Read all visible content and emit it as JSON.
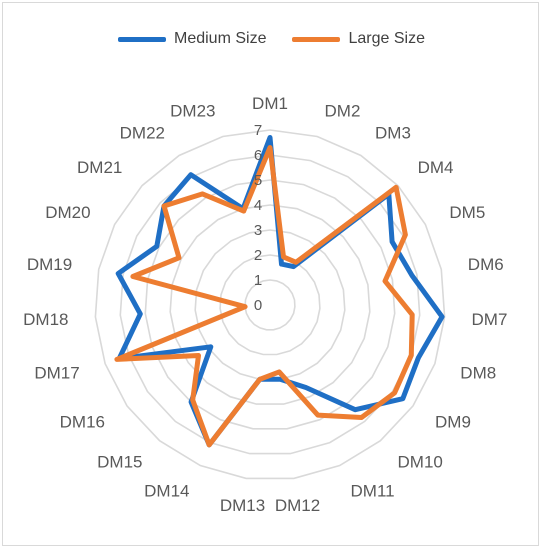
{
  "chart_data": {
    "type": "radar",
    "title": "",
    "categories": [
      "DM1",
      "DM2",
      "DM3",
      "DM4",
      "DM5",
      "DM6",
      "DM7",
      "DM8",
      "DM9",
      "DM10",
      "DM11",
      "DM12",
      "DM13",
      "DM14",
      "DM15",
      "DM16",
      "DM17",
      "DM18",
      "DM19",
      "DM20",
      "DM21",
      "DM22",
      "DM23"
    ],
    "series": [
      {
        "name": "Medium Size",
        "color": "#1f6fc5",
        "values": [
          6.7,
          1.7,
          1.8,
          6.5,
          5.5,
          5.8,
          6.9,
          6.3,
          6.5,
          5.4,
          3.6,
          3.0,
          3.0,
          6.1,
          5.0,
          2.9,
          6.4,
          5.2,
          6.2,
          5.1,
          5.8,
          6.1,
          4.0
        ]
      },
      {
        "name": "Large Size",
        "color": "#ed7d31",
        "values": [
          6.3,
          2.0,
          2.0,
          6.9,
          6.1,
          4.7,
          5.7,
          6.0,
          6.1,
          5.8,
          4.8,
          2.7,
          3.0,
          6.1,
          4.9,
          3.5,
          6.5,
          1.0,
          5.6,
          4.1,
          5.8,
          5.2,
          3.9
        ]
      }
    ],
    "rmin": 0,
    "rmax": 7,
    "ticks": [
      "0",
      "1",
      "2",
      "3",
      "4",
      "5",
      "6",
      "7"
    ],
    "grid": true,
    "legend_position": "top"
  }
}
